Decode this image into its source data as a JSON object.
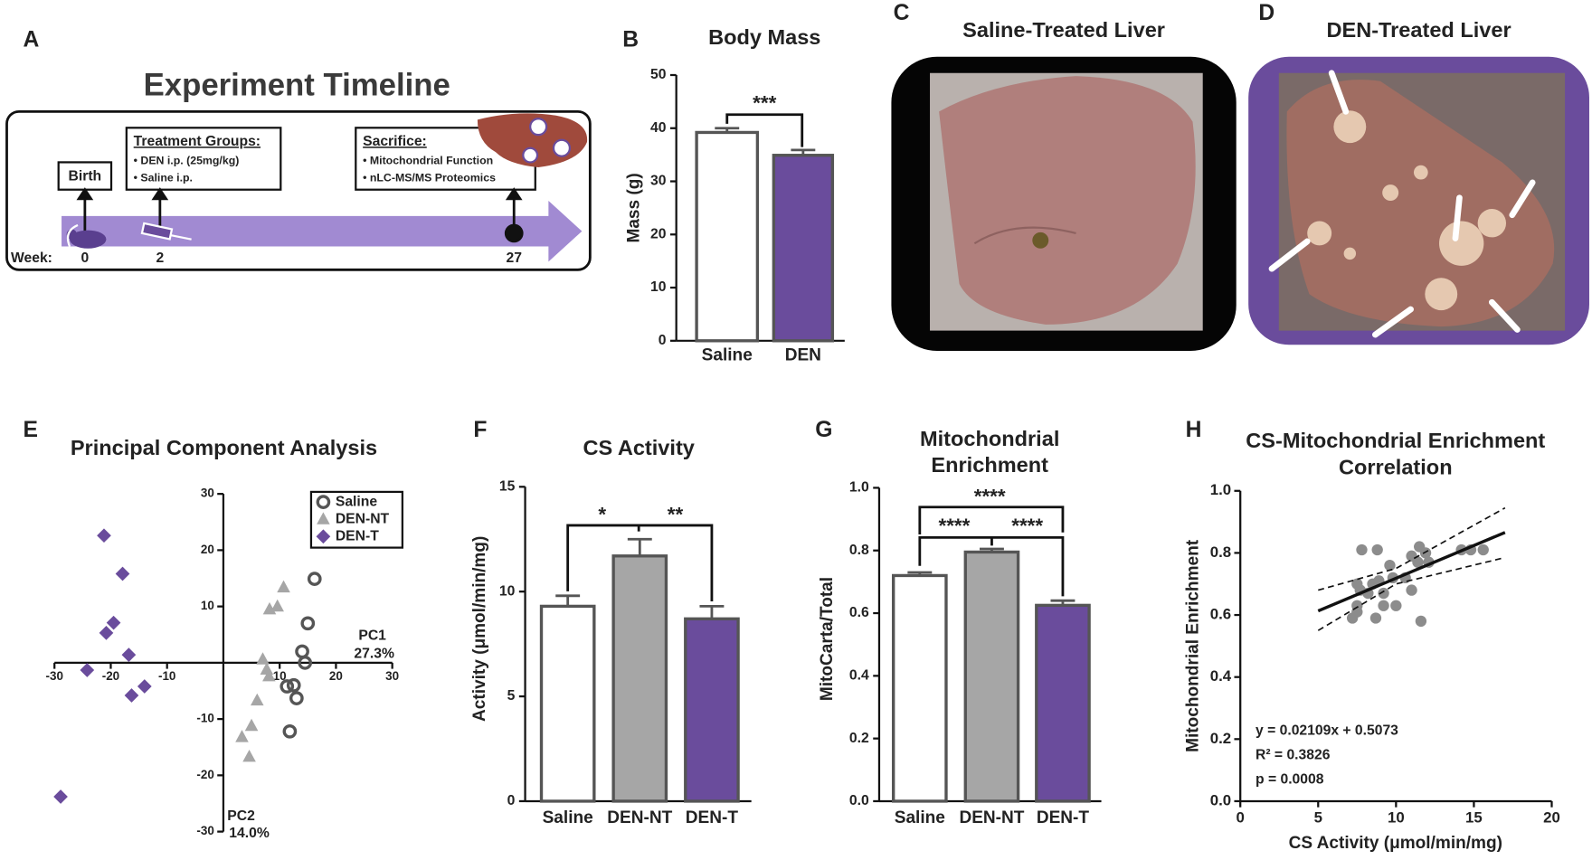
{
  "timeline": {
    "letter": "A",
    "title": "Experiment Timeline",
    "birth": "Birth",
    "treatment": {
      "heading": "Treatment Groups:",
      "items": [
        "• DEN i.p. (25mg/kg)",
        "• Saline i.p."
      ]
    },
    "sacrifice": {
      "heading": "Sacrifice:",
      "items": [
        "• Mitochondrial Function",
        "• nLC-MS/MS Proteomics"
      ]
    },
    "week_label": "Week:",
    "weeks": [
      "0",
      "2",
      "27"
    ]
  },
  "photo_c": {
    "letter": "C",
    "title": "Saline-Treated Liver"
  },
  "photo_d": {
    "letter": "D",
    "title": "DEN-Treated Liver"
  },
  "chart_data": [
    {
      "type": "bar",
      "letter": "B",
      "title": "Body Mass",
      "ylabel": "Mass (g)",
      "categories": [
        "Saline",
        "DEN"
      ],
      "values": [
        39.2,
        34.9
      ],
      "errors": [
        0.8,
        1.0
      ],
      "colors": [
        "#ffffff",
        "#6a4c9c"
      ],
      "ylim": [
        0,
        50
      ],
      "yticks": [
        0,
        10,
        20,
        30,
        40,
        50
      ],
      "annotations": [
        "***"
      ]
    },
    {
      "type": "scatter",
      "letter": "E",
      "title": "Principal Component Analysis",
      "xlabel": [
        "PC1",
        "27.3%"
      ],
      "ylabel": [
        "PC2",
        "14.0%"
      ],
      "xlim": [
        -30,
        30
      ],
      "ylim": [
        -30,
        30
      ],
      "xticks": [
        -30,
        -20,
        -10,
        10,
        20,
        30
      ],
      "yticks": [
        -30,
        -20,
        -10,
        10,
        20,
        30
      ],
      "legend": "upper right",
      "series": [
        {
          "name": "Saline",
          "marker": "open-circle",
          "color": "#555555",
          "x": [
            16.2,
            15,
            14,
            14.5,
            12.5,
            11.3,
            13,
            11.8
          ],
          "values": [
            14.9,
            7,
            2,
            0,
            -4,
            -4.2,
            -6.3,
            -12.2
          ]
        },
        {
          "name": "DEN-NT",
          "marker": "triangle",
          "color": "#a6a6a6",
          "x": [
            10.7,
            9.6,
            8.2,
            7,
            7.7,
            8.1,
            6,
            5,
            3.3,
            4.6
          ],
          "values": [
            13.4,
            10,
            9.5,
            0.6,
            -1.2,
            -2.4,
            -6.7,
            -11.2,
            -13.2,
            -16.7
          ]
        },
        {
          "name": "DEN-T",
          "marker": "diamond",
          "color": "#6a4c9c",
          "x": [
            -21.2,
            -17.9,
            -19.5,
            -20.8,
            -16.8,
            -24.2,
            -16.3,
            -14,
            -28.9
          ],
          "values": [
            22.6,
            15.8,
            7.1,
            5.3,
            1.4,
            -1.3,
            -5.8,
            -4.2,
            -23.8
          ]
        }
      ]
    },
    {
      "type": "bar",
      "letter": "F",
      "title": "CS Activity",
      "ylabel": "Activity (μmol/min/mg)",
      "categories": [
        "Saline",
        "DEN-NT",
        "DEN-T"
      ],
      "values": [
        9.3,
        11.7,
        8.7
      ],
      "errors": [
        0.5,
        0.8,
        0.6
      ],
      "colors": [
        "#ffffff",
        "#a6a6a6",
        "#6a4c9c"
      ],
      "ylim": [
        0,
        15
      ],
      "yticks": [
        0,
        5,
        10,
        15
      ],
      "annotations": [
        "*",
        "**"
      ]
    },
    {
      "type": "bar",
      "letter": "G",
      "title": [
        "Mitochondrial",
        "Enrichment"
      ],
      "ylabel": "MitoCarta/Total",
      "categories": [
        "Saline",
        "DEN-NT",
        "DEN-T"
      ],
      "values": [
        0.72,
        0.795,
        0.625
      ],
      "errors": [
        0.01,
        0.01,
        0.015
      ],
      "colors": [
        "#ffffff",
        "#a6a6a6",
        "#6a4c9c"
      ],
      "ylim": [
        0,
        1
      ],
      "yticks": [
        {
          "value": 0,
          "label": "0.0"
        },
        {
          "value": 0.2,
          "label": "0.2"
        },
        {
          "value": 0.4,
          "label": "0.4"
        },
        {
          "value": 0.6,
          "label": "0.6"
        },
        {
          "value": 0.8,
          "label": "0.8"
        },
        {
          "value": 1,
          "label": "1.0"
        }
      ],
      "annotations": [
        "****",
        "****",
        "****"
      ]
    },
    {
      "type": "scatter",
      "letter": "H",
      "title": [
        "CS-Mitochondrial Enrichment",
        "Correlation"
      ],
      "xlabel": "CS Activity (μmol/min/mg)",
      "ylabel": "Mitochondrial Enrichment",
      "xlim": [
        0,
        20
      ],
      "ylim": [
        0,
        1
      ],
      "xticks": [
        0,
        5,
        10,
        15,
        20
      ],
      "yticks": [
        {
          "value": 0,
          "label": "0.0"
        },
        {
          "value": 0.2,
          "label": "0.2"
        },
        {
          "value": 0.4,
          "label": "0.4"
        },
        {
          "value": 0.6,
          "label": "0.6"
        },
        {
          "value": 0.8,
          "label": "0.8"
        },
        {
          "value": 1,
          "label": "1.0"
        }
      ],
      "series": [
        {
          "marker": "circle",
          "color": "#8c8c8c",
          "x": [
            7.8,
            8.8,
            9.6,
            11,
            11.5,
            11.9,
            12.1,
            11.4,
            14.2,
            14.8,
            15.6,
            7.5,
            7.7,
            8.5,
            8.9,
            9.2,
            9.8,
            10.6,
            11,
            7.5,
            7.2,
            7.5,
            9.2,
            8.7,
            10,
            11.6,
            8.2
          ],
          "values": [
            0.81,
            0.81,
            0.76,
            0.79,
            0.82,
            0.8,
            0.77,
            0.77,
            0.81,
            0.81,
            0.81,
            0.7,
            0.68,
            0.7,
            0.71,
            0.67,
            0.72,
            0.72,
            0.68,
            0.63,
            0.59,
            0.61,
            0.63,
            0.59,
            0.63,
            0.58,
            0.67
          ]
        }
      ],
      "fit": {
        "x": [
          5,
          17
        ],
        "y": [
          0.613,
          0.866
        ]
      },
      "band_upper": {
        "x": [
          5,
          10,
          17
        ],
        "y": [
          0.68,
          0.75,
          0.945
        ]
      },
      "band_lower": {
        "x": [
          5,
          10,
          17
        ],
        "y": [
          0.55,
          0.7,
          0.785
        ]
      },
      "text_annotations": [
        "y = 0.02109x + 0.5073",
        "R² = 0.3826",
        "p = 0.0008"
      ]
    }
  ]
}
